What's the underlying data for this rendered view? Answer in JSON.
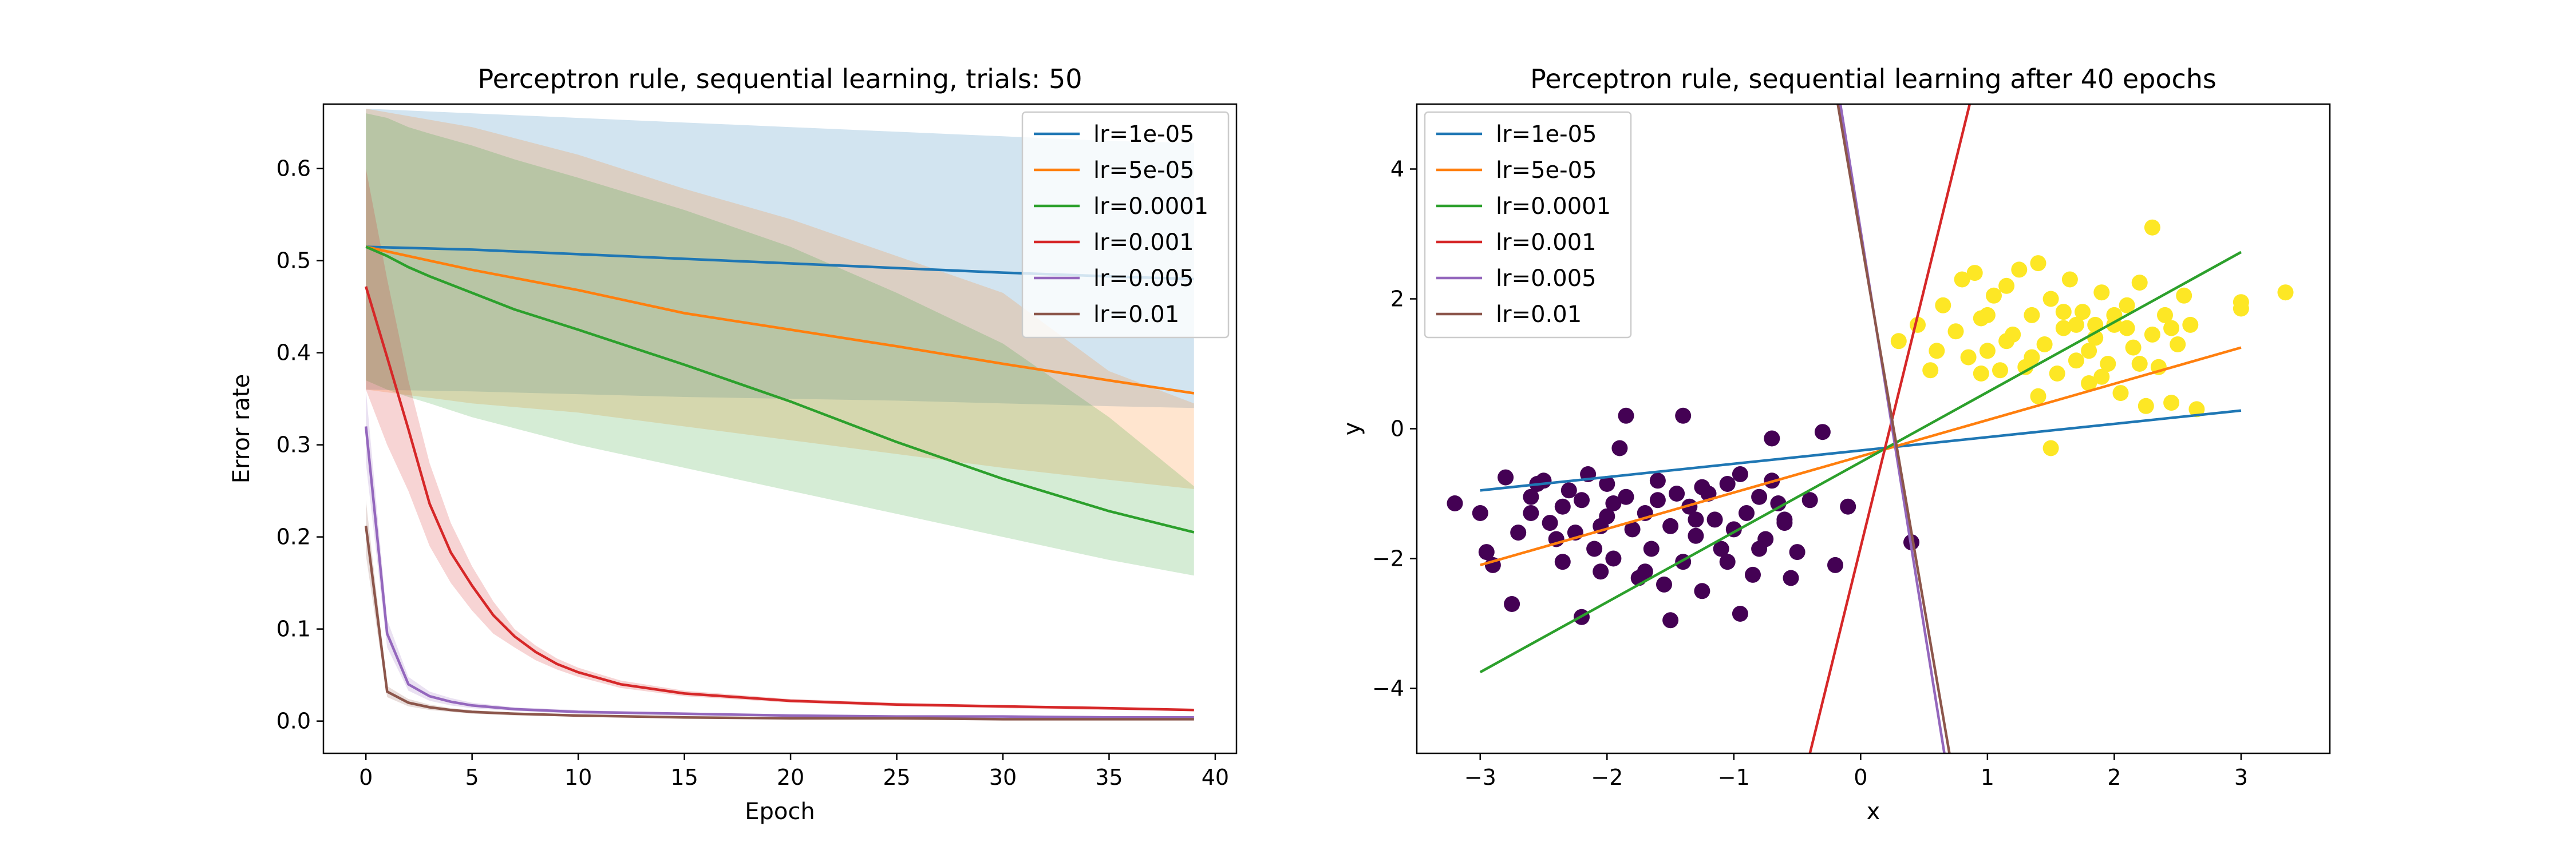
{
  "chart_data": [
    {
      "type": "line",
      "title": "Perceptron rule, sequential learning, trials: 50",
      "xlabel": "Epoch",
      "ylabel": "Error rate",
      "xlim": [
        -2,
        41
      ],
      "ylim": [
        -0.035,
        0.67
      ],
      "xticks": [
        0,
        5,
        10,
        15,
        20,
        25,
        30,
        35,
        40
      ],
      "yticks": [
        0.0,
        0.1,
        0.2,
        0.3,
        0.4,
        0.5,
        0.6
      ],
      "xtick_labels": [
        "0",
        "5",
        "10",
        "15",
        "20",
        "25",
        "30",
        "35",
        "40"
      ],
      "ytick_labels": [
        "0.0",
        "0.1",
        "0.2",
        "0.3",
        "0.4",
        "0.5",
        "0.6"
      ],
      "legend": "top-right",
      "grid": false,
      "series": [
        {
          "name": "lr=1e-05",
          "color": "#1f77b4",
          "x": [
            0,
            5,
            10,
            15,
            20,
            25,
            30,
            35,
            39
          ],
          "y": [
            0.515,
            0.512,
            0.507,
            0.502,
            0.497,
            0.492,
            0.487,
            0.483,
            0.48
          ],
          "upper": [
            0.665,
            0.66,
            0.655,
            0.65,
            0.645,
            0.64,
            0.635,
            0.63,
            0.628
          ],
          "lower": [
            0.36,
            0.358,
            0.355,
            0.352,
            0.35,
            0.348,
            0.345,
            0.342,
            0.34
          ]
        },
        {
          "name": "lr=5e-05",
          "color": "#ff7f0e",
          "x": [
            0,
            5,
            10,
            15,
            20,
            25,
            30,
            35,
            39
          ],
          "y": [
            0.515,
            0.49,
            0.468,
            0.443,
            0.425,
            0.407,
            0.388,
            0.37,
            0.356
          ],
          "upper": [
            0.665,
            0.645,
            0.615,
            0.578,
            0.545,
            0.505,
            0.465,
            0.38,
            0.345
          ],
          "lower": [
            0.36,
            0.345,
            0.335,
            0.32,
            0.305,
            0.29,
            0.275,
            0.262,
            0.252
          ]
        },
        {
          "name": "lr=0.0001",
          "color": "#2ca02c",
          "x": [
            0,
            1,
            2,
            3,
            5,
            7,
            10,
            15,
            20,
            25,
            30,
            35,
            39
          ],
          "y": [
            0.515,
            0.505,
            0.493,
            0.483,
            0.465,
            0.447,
            0.425,
            0.387,
            0.347,
            0.303,
            0.263,
            0.228,
            0.205
          ],
          "upper": [
            0.66,
            0.655,
            0.645,
            0.638,
            0.625,
            0.61,
            0.59,
            0.555,
            0.515,
            0.465,
            0.41,
            0.33,
            0.255
          ],
          "lower": [
            0.37,
            0.36,
            0.352,
            0.345,
            0.33,
            0.318,
            0.3,
            0.275,
            0.25,
            0.225,
            0.2,
            0.175,
            0.158
          ]
        },
        {
          "name": "lr=0.001",
          "color": "#d62728",
          "x": [
            0,
            1,
            2,
            3,
            4,
            5,
            6,
            7,
            8,
            9,
            10,
            12,
            15,
            20,
            25,
            30,
            35,
            39
          ],
          "y": [
            0.472,
            0.395,
            0.317,
            0.236,
            0.183,
            0.147,
            0.115,
            0.092,
            0.075,
            0.062,
            0.053,
            0.04,
            0.03,
            0.022,
            0.018,
            0.016,
            0.014,
            0.012
          ],
          "upper": [
            0.6,
            0.48,
            0.37,
            0.28,
            0.215,
            0.168,
            0.13,
            0.1,
            0.082,
            0.068,
            0.058,
            0.044,
            0.033,
            0.024,
            0.02,
            0.017,
            0.015,
            0.013
          ],
          "lower": [
            0.36,
            0.3,
            0.25,
            0.19,
            0.15,
            0.12,
            0.095,
            0.08,
            0.066,
            0.056,
            0.048,
            0.036,
            0.027,
            0.02,
            0.016,
            0.014,
            0.012,
            0.011
          ]
        },
        {
          "name": "lr=0.005",
          "color": "#9467bd",
          "x": [
            0,
            1,
            2,
            3,
            4,
            5,
            7,
            10,
            15,
            20,
            25,
            30,
            35,
            39
          ],
          "y": [
            0.32,
            0.095,
            0.04,
            0.027,
            0.021,
            0.017,
            0.013,
            0.01,
            0.008,
            0.006,
            0.005,
            0.005,
            0.004,
            0.004
          ],
          "upper": [
            0.36,
            0.11,
            0.048,
            0.032,
            0.025,
            0.02,
            0.015,
            0.012,
            0.009,
            0.007,
            0.006,
            0.006,
            0.005,
            0.005
          ],
          "lower": [
            0.28,
            0.08,
            0.033,
            0.022,
            0.017,
            0.014,
            0.011,
            0.008,
            0.006,
            0.005,
            0.004,
            0.004,
            0.003,
            0.003
          ]
        },
        {
          "name": "lr=0.01",
          "color": "#8c564b",
          "x": [
            0,
            1,
            2,
            3,
            4,
            5,
            7,
            10,
            15,
            20,
            25,
            30,
            35,
            39
          ],
          "y": [
            0.212,
            0.032,
            0.02,
            0.015,
            0.012,
            0.01,
            0.008,
            0.006,
            0.004,
            0.003,
            0.003,
            0.002,
            0.002,
            0.002
          ],
          "upper": [
            0.24,
            0.038,
            0.024,
            0.018,
            0.014,
            0.012,
            0.009,
            0.007,
            0.005,
            0.004,
            0.003,
            0.003,
            0.003,
            0.003
          ],
          "lower": [
            0.18,
            0.026,
            0.016,
            0.012,
            0.01,
            0.008,
            0.006,
            0.005,
            0.003,
            0.002,
            0.002,
            0.002,
            0.001,
            0.001
          ]
        }
      ]
    },
    {
      "type": "scatter",
      "title": "Perceptron rule, sequential learning after 40 epochs",
      "xlabel": "x",
      "ylabel": "y",
      "xlim": [
        -3.5,
        3.7
      ],
      "ylim": [
        -5,
        5
      ],
      "xticks": [
        -3,
        -2,
        -1,
        0,
        1,
        2,
        3
      ],
      "yticks": [
        -4,
        -2,
        0,
        2,
        4
      ],
      "xtick_labels": [
        "−3",
        "−2",
        "−1",
        "0",
        "1",
        "2",
        "3"
      ],
      "ytick_labels": [
        "−4",
        "−2",
        "0",
        "2",
        "4"
      ],
      "legend": "top-left",
      "grid": false,
      "lines": [
        {
          "name": "lr=1e-05",
          "color": "#1f77b4",
          "x": [
            -3,
            3
          ],
          "y": [
            -0.95,
            0.28
          ]
        },
        {
          "name": "lr=5e-05",
          "color": "#ff7f0e",
          "x": [
            -3,
            3
          ],
          "y": [
            -2.1,
            1.25
          ]
        },
        {
          "name": "lr=0.0001",
          "color": "#2ca02c",
          "x": [
            -3,
            3
          ],
          "y": [
            -3.75,
            2.72
          ]
        },
        {
          "name": "lr=0.001",
          "color": "#d62728",
          "x": [
            -0.4,
            0.86
          ],
          "y": [
            -5,
            5
          ]
        },
        {
          "name": "lr=0.005",
          "color": "#9467bd",
          "x": [
            -0.16,
            0.66
          ],
          "y": [
            5,
            -5
          ]
        },
        {
          "name": "lr=0.01",
          "color": "#8c564b",
          "x": [
            -0.18,
            0.7
          ],
          "y": [
            5,
            -5
          ]
        }
      ],
      "classes": [
        {
          "color": "#440154",
          "points": [
            [
              -3.2,
              -1.15
            ],
            [
              -3.0,
              -1.3
            ],
            [
              -2.9,
              -2.1
            ],
            [
              -2.95,
              -1.9
            ],
            [
              -2.8,
              -0.75
            ],
            [
              -2.75,
              -2.7
            ],
            [
              -2.6,
              -1.05
            ],
            [
              -2.55,
              -0.85
            ],
            [
              -2.5,
              -0.8
            ],
            [
              -2.45,
              -1.45
            ],
            [
              -2.4,
              -1.7
            ],
            [
              -2.35,
              -1.2
            ],
            [
              -2.3,
              -0.95
            ],
            [
              -2.25,
              -1.6
            ],
            [
              -2.2,
              -2.9
            ],
            [
              -2.2,
              -1.1
            ],
            [
              -2.15,
              -0.7
            ],
            [
              -2.1,
              -1.85
            ],
            [
              -2.05,
              -1.5
            ],
            [
              -2.0,
              -0.85
            ],
            [
              -2.0,
              -1.35
            ],
            [
              -1.95,
              -2.0
            ],
            [
              -1.9,
              -0.3
            ],
            [
              -1.85,
              0.2
            ],
            [
              -1.85,
              -1.05
            ],
            [
              -1.8,
              -1.55
            ],
            [
              -1.75,
              -2.3
            ],
            [
              -1.7,
              -1.3
            ],
            [
              -1.65,
              -1.85
            ],
            [
              -1.6,
              -0.8
            ],
            [
              -1.55,
              -2.4
            ],
            [
              -1.5,
              -1.5
            ],
            [
              -1.5,
              -2.95
            ],
            [
              -1.45,
              -1.0
            ],
            [
              -1.4,
              -2.05
            ],
            [
              -1.4,
              0.2
            ],
            [
              -1.35,
              -1.2
            ],
            [
              -1.3,
              -1.65
            ],
            [
              -1.25,
              -2.5
            ],
            [
              -1.2,
              -1.0
            ],
            [
              -1.15,
              -1.4
            ],
            [
              -1.1,
              -1.85
            ],
            [
              -1.05,
              -0.85
            ],
            [
              -1.0,
              -1.55
            ],
            [
              -0.95,
              -2.85
            ],
            [
              -0.95,
              -0.7
            ],
            [
              -0.9,
              -1.3
            ],
            [
              -0.85,
              -2.25
            ],
            [
              -0.8,
              -1.05
            ],
            [
              -0.75,
              -1.7
            ],
            [
              -0.7,
              -0.15
            ],
            [
              -0.65,
              -1.15
            ],
            [
              -0.6,
              -1.45
            ],
            [
              -0.55,
              -2.3
            ],
            [
              -0.5,
              -1.9
            ],
            [
              -0.4,
              -1.1
            ],
            [
              -0.3,
              -0.05
            ],
            [
              -0.2,
              -2.1
            ],
            [
              -0.1,
              -1.2
            ],
            [
              0.4,
              -1.75
            ],
            [
              -2.6,
              -1.3
            ],
            [
              -2.7,
              -1.6
            ],
            [
              -2.35,
              -2.05
            ],
            [
              -1.95,
              -1.15
            ],
            [
              -1.6,
              -1.1
            ],
            [
              -1.25,
              -0.9
            ],
            [
              -1.05,
              -2.05
            ],
            [
              -0.8,
              -1.85
            ],
            [
              -0.7,
              -0.8
            ],
            [
              -2.05,
              -2.2
            ],
            [
              -1.7,
              -2.2
            ],
            [
              -1.3,
              -1.4
            ],
            [
              -0.6,
              -1.4
            ]
          ]
        },
        {
          "color": "#fde725",
          "points": [
            [
              0.3,
              1.35
            ],
            [
              0.55,
              0.9
            ],
            [
              0.65,
              1.9
            ],
            [
              0.75,
              1.5
            ],
            [
              0.8,
              2.3
            ],
            [
              0.85,
              1.1
            ],
            [
              0.9,
              2.4
            ],
            [
              0.95,
              1.7
            ],
            [
              1.0,
              1.2
            ],
            [
              1.05,
              2.05
            ],
            [
              1.1,
              0.9
            ],
            [
              1.15,
              2.2
            ],
            [
              1.2,
              1.45
            ],
            [
              1.25,
              2.45
            ],
            [
              1.3,
              0.95
            ],
            [
              1.35,
              1.75
            ],
            [
              1.4,
              2.55
            ],
            [
              1.45,
              1.3
            ],
            [
              1.5,
              -0.3
            ],
            [
              1.5,
              2.0
            ],
            [
              1.55,
              0.85
            ],
            [
              1.6,
              1.55
            ],
            [
              1.65,
              2.3
            ],
            [
              1.7,
              1.05
            ],
            [
              1.75,
              1.8
            ],
            [
              1.8,
              0.7
            ],
            [
              1.85,
              1.4
            ],
            [
              1.9,
              2.1
            ],
            [
              1.95,
              1.0
            ],
            [
              2.0,
              1.6
            ],
            [
              2.05,
              0.55
            ],
            [
              2.1,
              1.9
            ],
            [
              2.15,
              1.25
            ],
            [
              2.2,
              2.25
            ],
            [
              2.25,
              0.35
            ],
            [
              2.3,
              1.45
            ],
            [
              2.3,
              3.1
            ],
            [
              2.35,
              0.95
            ],
            [
              2.4,
              1.75
            ],
            [
              2.45,
              0.4
            ],
            [
              2.5,
              1.3
            ],
            [
              2.55,
              2.05
            ],
            [
              2.6,
              1.6
            ],
            [
              2.65,
              0.3
            ],
            [
              3.0,
              1.95
            ],
            [
              3.0,
              1.85
            ],
            [
              3.35,
              2.1
            ],
            [
              0.6,
              1.2
            ],
            [
              1.0,
              1.75
            ],
            [
              1.35,
              1.1
            ],
            [
              1.6,
              1.8
            ],
            [
              1.8,
              1.2
            ],
            [
              2.0,
              1.75
            ],
            [
              2.2,
              1.0
            ],
            [
              2.45,
              1.55
            ],
            [
              1.15,
              1.35
            ],
            [
              1.7,
              1.6
            ],
            [
              1.9,
              0.8
            ],
            [
              2.1,
              1.55
            ],
            [
              1.4,
              0.5
            ],
            [
              1.85,
              1.6
            ],
            [
              0.45,
              1.6
            ],
            [
              0.95,
              0.85
            ]
          ]
        }
      ]
    }
  ]
}
